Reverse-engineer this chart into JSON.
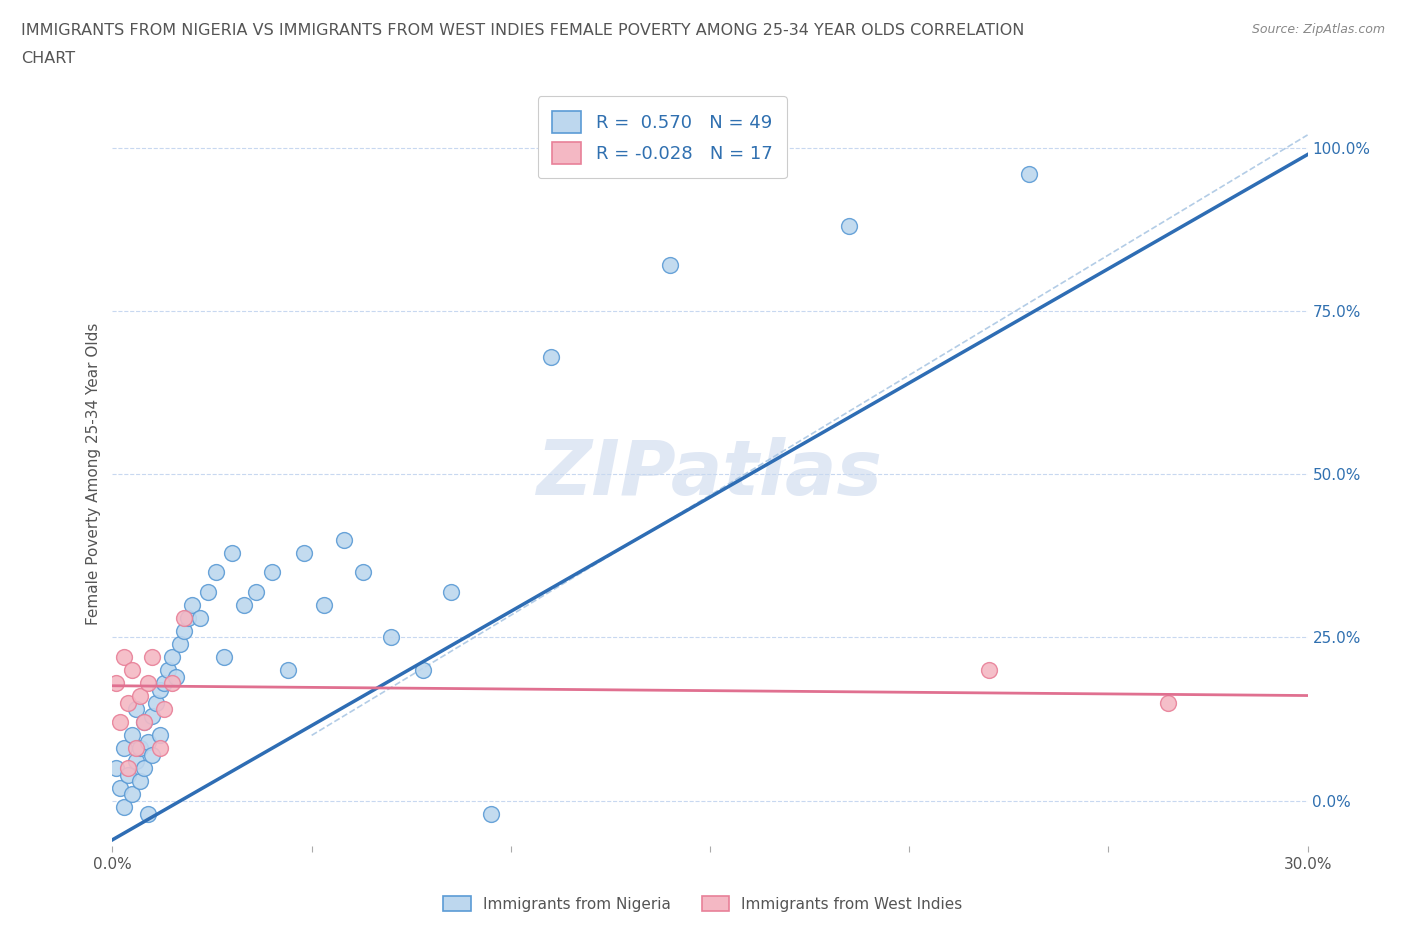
{
  "title_line1": "IMMIGRANTS FROM NIGERIA VS IMMIGRANTS FROM WEST INDIES FEMALE POVERTY AMONG 25-34 YEAR OLDS CORRELATION",
  "title_line2": "CHART",
  "source": "Source: ZipAtlas.com",
  "ylabel": "Female Poverty Among 25-34 Year Olds",
  "xmin": 0.0,
  "xmax": 0.3,
  "ymin": -0.07,
  "ymax": 1.07,
  "yticks": [
    0.0,
    0.25,
    0.5,
    0.75,
    1.0
  ],
  "ytick_labels": [
    "0.0%",
    "25.0%",
    "50.0%",
    "75.0%",
    "100.0%"
  ],
  "xticks": [
    0.0,
    0.05,
    0.1,
    0.15,
    0.2,
    0.25,
    0.3
  ],
  "xtick_labels": [
    "0.0%",
    "",
    "",
    "",
    "",
    "",
    "30.0%"
  ],
  "nigeria_color_edge": "#5b9bd5",
  "nigeria_color_fill": "#bdd7ee",
  "westindies_color_edge": "#e88098",
  "westindies_color_fill": "#f4b8c4",
  "trendline_nigeria_color": "#2e6db4",
  "trendline_wi_color": "#e07090",
  "refline_color": "#a0c0e0",
  "grid_color": "#c8d8f0",
  "R_nigeria": 0.57,
  "N_nigeria": 49,
  "R_westindies": -0.028,
  "N_westindies": 17,
  "legend_label_nigeria": "Immigrants from Nigeria",
  "legend_label_westindies": "Immigrants from West Indies",
  "watermark": "ZIPatlas",
  "background_color": "#ffffff",
  "nigeria_x": [
    0.001,
    0.002,
    0.003,
    0.003,
    0.004,
    0.005,
    0.005,
    0.006,
    0.006,
    0.007,
    0.007,
    0.008,
    0.008,
    0.009,
    0.009,
    0.01,
    0.01,
    0.011,
    0.012,
    0.012,
    0.013,
    0.014,
    0.015,
    0.016,
    0.017,
    0.018,
    0.019,
    0.02,
    0.022,
    0.024,
    0.026,
    0.028,
    0.03,
    0.033,
    0.036,
    0.04,
    0.044,
    0.048,
    0.053,
    0.058,
    0.063,
    0.07,
    0.078,
    0.085,
    0.095,
    0.11,
    0.14,
    0.185,
    0.23
  ],
  "nigeria_y": [
    0.05,
    0.02,
    -0.01,
    0.08,
    0.04,
    0.01,
    0.1,
    0.06,
    0.14,
    0.03,
    0.08,
    0.12,
    0.05,
    -0.02,
    0.09,
    0.07,
    0.13,
    0.15,
    0.1,
    0.17,
    0.18,
    0.2,
    0.22,
    0.19,
    0.24,
    0.26,
    0.28,
    0.3,
    0.28,
    0.32,
    0.35,
    0.22,
    0.38,
    0.3,
    0.32,
    0.35,
    0.2,
    0.38,
    0.3,
    0.4,
    0.35,
    0.25,
    0.2,
    0.32,
    -0.02,
    0.68,
    0.82,
    0.88,
    0.96
  ],
  "westindies_x": [
    0.001,
    0.002,
    0.003,
    0.004,
    0.004,
    0.005,
    0.006,
    0.007,
    0.008,
    0.009,
    0.01,
    0.012,
    0.013,
    0.015,
    0.018,
    0.22,
    0.265
  ],
  "westindies_y": [
    0.18,
    0.12,
    0.22,
    0.15,
    0.05,
    0.2,
    0.08,
    0.16,
    0.12,
    0.18,
    0.22,
    0.08,
    0.14,
    0.18,
    0.28,
    0.2,
    0.15
  ]
}
